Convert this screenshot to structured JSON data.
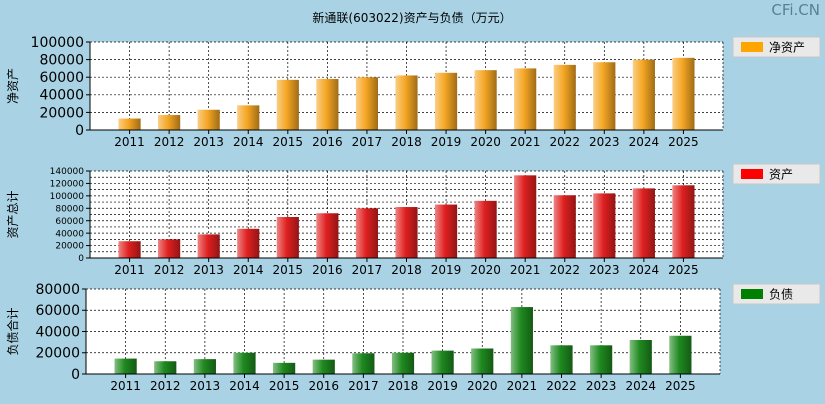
{
  "title": "新通联(603022)资产与负债（万元）",
  "watermark": "CFi.CN",
  "colors": {
    "background": "#a9d3e5",
    "plot_bg": "#ffffff",
    "grid": "#000000",
    "legend_bg": "#e9e9e9"
  },
  "chart_data": [
    {
      "type": "bar",
      "ylabel": "净资产",
      "legend": "净资产",
      "color": "#f5a623",
      "legend_color": "#ffa500",
      "categories": [
        "2011",
        "2012",
        "2013",
        "2014",
        "2015",
        "2016",
        "2017",
        "2018",
        "2019",
        "2020",
        "2021",
        "2022",
        "2023",
        "2024",
        "2025"
      ],
      "values": [
        13000,
        17000,
        23000,
        28000,
        57000,
        58000,
        60000,
        62000,
        65000,
        68000,
        70000,
        74000,
        77000,
        80000,
        82000
      ],
      "ylim": [
        0,
        100000
      ],
      "yticks": [
        0,
        20000,
        40000,
        60000,
        80000,
        100000
      ],
      "grid": true
    },
    {
      "type": "bar",
      "ylabel": "资产总计",
      "legend": "资产",
      "color": "#e02020",
      "legend_color": "#ff0000",
      "categories": [
        "2011",
        "2012",
        "2013",
        "2014",
        "2015",
        "2016",
        "2017",
        "2018",
        "2019",
        "2020",
        "2021",
        "2022",
        "2023",
        "2024",
        "2025"
      ],
      "values": [
        27000,
        30000,
        38000,
        47000,
        66000,
        72000,
        80000,
        82000,
        86000,
        92000,
        133000,
        101000,
        104000,
        112000,
        117000
      ],
      "ylim": [
        0,
        140000
      ],
      "yticks": [
        0,
        20000,
        40000,
        60000,
        80000,
        100000,
        120000,
        140000
      ],
      "minor_step": 10000,
      "grid": true
    },
    {
      "type": "bar",
      "ylabel": "负债合计",
      "legend": "负债",
      "color": "#1f8a1f",
      "legend_color": "#008000",
      "categories": [
        "2011",
        "2012",
        "2013",
        "2014",
        "2015",
        "2016",
        "2017",
        "2018",
        "2019",
        "2020",
        "2021",
        "2022",
        "2023",
        "2024",
        "2025"
      ],
      "values": [
        14500,
        12000,
        14000,
        20000,
        10500,
        13500,
        19500,
        20000,
        22000,
        24000,
        63000,
        27000,
        27000,
        32000,
        36000
      ],
      "ylim": [
        0,
        80000
      ],
      "yticks": [
        0,
        20000,
        40000,
        60000,
        80000
      ],
      "grid": true
    }
  ]
}
